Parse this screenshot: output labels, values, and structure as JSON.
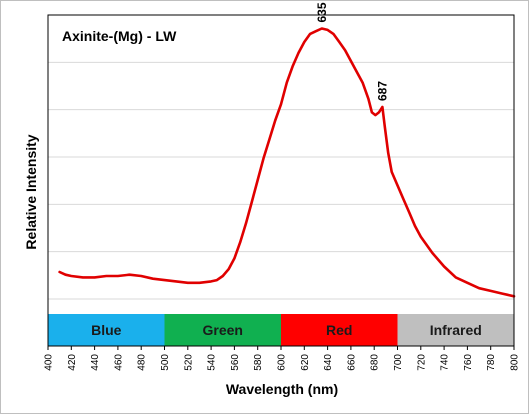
{
  "chart_data": {
    "type": "line",
    "title": "Axinite-(Mg) - LW",
    "xlabel": "Wavelength (nm)",
    "ylabel": "Relative Intensity",
    "xlim": [
      400,
      800
    ],
    "ylim": [
      0,
      1.05
    ],
    "x_ticks": [
      400,
      420,
      440,
      460,
      480,
      500,
      520,
      540,
      560,
      580,
      600,
      620,
      640,
      660,
      680,
      700,
      720,
      740,
      760,
      780,
      800
    ],
    "y_gridlines": true,
    "legend": "none",
    "bands": [
      {
        "label": "Blue",
        "start": 400,
        "end": 500,
        "color": "#1ab0ec"
      },
      {
        "label": "Green",
        "start": 500,
        "end": 600,
        "color": "#10b050"
      },
      {
        "label": "Red",
        "start": 600,
        "end": 700,
        "color": "#ff0000"
      },
      {
        "label": "Infrared",
        "start": 700,
        "end": 800,
        "color": "#bfbfbf"
      }
    ],
    "annotations": [
      {
        "text": "635",
        "x": 635,
        "y": 1.0
      },
      {
        "text": "687",
        "x": 687,
        "y": 0.71
      }
    ],
    "series": [
      {
        "color": "#e00000",
        "x": [
          410,
          415,
          420,
          430,
          440,
          450,
          460,
          470,
          480,
          490,
          500,
          510,
          520,
          530,
          540,
          545,
          550,
          555,
          560,
          565,
          570,
          575,
          580,
          585,
          590,
          595,
          600,
          605,
          610,
          615,
          620,
          625,
          630,
          635,
          640,
          645,
          650,
          655,
          660,
          665,
          670,
          675,
          678,
          681,
          684,
          687,
          689,
          692,
          695,
          700,
          705,
          710,
          715,
          720,
          730,
          740,
          750,
          760,
          770,
          780,
          790,
          800
        ],
        "y": [
          0.1,
          0.09,
          0.085,
          0.08,
          0.08,
          0.085,
          0.085,
          0.09,
          0.085,
          0.075,
          0.07,
          0.065,
          0.06,
          0.06,
          0.065,
          0.07,
          0.085,
          0.11,
          0.15,
          0.21,
          0.28,
          0.36,
          0.44,
          0.52,
          0.59,
          0.66,
          0.72,
          0.8,
          0.86,
          0.91,
          0.95,
          0.98,
          0.99,
          1.0,
          0.995,
          0.98,
          0.95,
          0.92,
          0.88,
          0.84,
          0.8,
          0.74,
          0.69,
          0.68,
          0.69,
          0.71,
          0.64,
          0.54,
          0.47,
          0.42,
          0.37,
          0.32,
          0.27,
          0.23,
          0.17,
          0.12,
          0.08,
          0.06,
          0.04,
          0.03,
          0.02,
          0.01
        ]
      }
    ]
  }
}
